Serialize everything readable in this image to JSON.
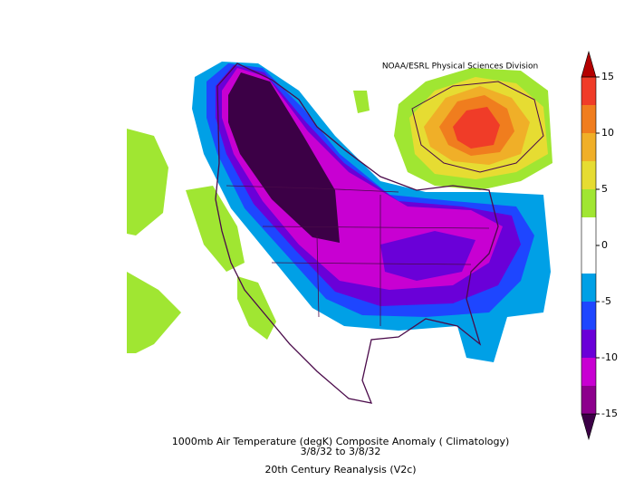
{
  "header": {
    "credit": "NOAA/ESRL Physical Sciences Division"
  },
  "colorbar": {
    "ticks": [
      15,
      10,
      5,
      0,
      -5,
      -10,
      -15
    ],
    "colors": [
      "#3c0046",
      "#8c008c",
      "#c800d2",
      "#6a00d8",
      "#1e46ff",
      "#00a0e6",
      "#ffffff",
      "#ffffff",
      "#a0e632",
      "#e6dc32",
      "#f0af28",
      "#f07d1e",
      "#f03c28",
      "#b40000"
    ]
  },
  "footer": {
    "title": "1000mb Air Temperature (degK) Composite Anomaly ( Climatology)",
    "dates": "3/8/32  to 3/8/32",
    "source": "20th Century Reanalysis (V2c)"
  }
}
